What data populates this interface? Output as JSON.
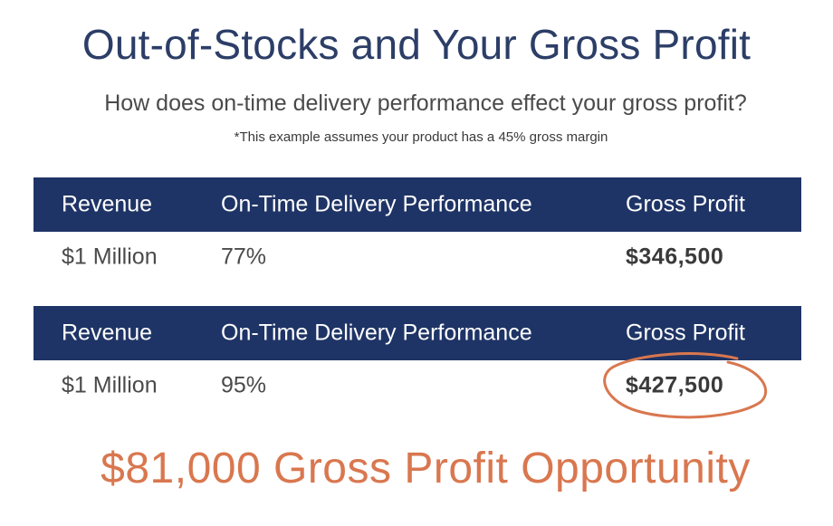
{
  "title": "Out-of-Stocks and Your Gross Profit",
  "subtitle": "How does on-time delivery performance effect your gross profit?",
  "footnote": "*This example assumes your product has a 45% gross margin",
  "tables": [
    {
      "headers": [
        "Revenue",
        "On-Time Delivery Performance",
        "Gross Profit"
      ],
      "row": {
        "revenue": "$1 Million",
        "performance": "77%",
        "gross_profit": "$346,500"
      }
    },
    {
      "headers": [
        "Revenue",
        "On-Time Delivery Performance",
        "Gross Profit"
      ],
      "row": {
        "revenue": "$1 Million",
        "performance": "95%",
        "gross_profit": "$427,500"
      }
    }
  ],
  "opportunity": "$81,000 Gross Profit Opportunity",
  "colors": {
    "header_bg": "#1f3466",
    "title": "#2c3e67",
    "accent": "#d9774f"
  }
}
